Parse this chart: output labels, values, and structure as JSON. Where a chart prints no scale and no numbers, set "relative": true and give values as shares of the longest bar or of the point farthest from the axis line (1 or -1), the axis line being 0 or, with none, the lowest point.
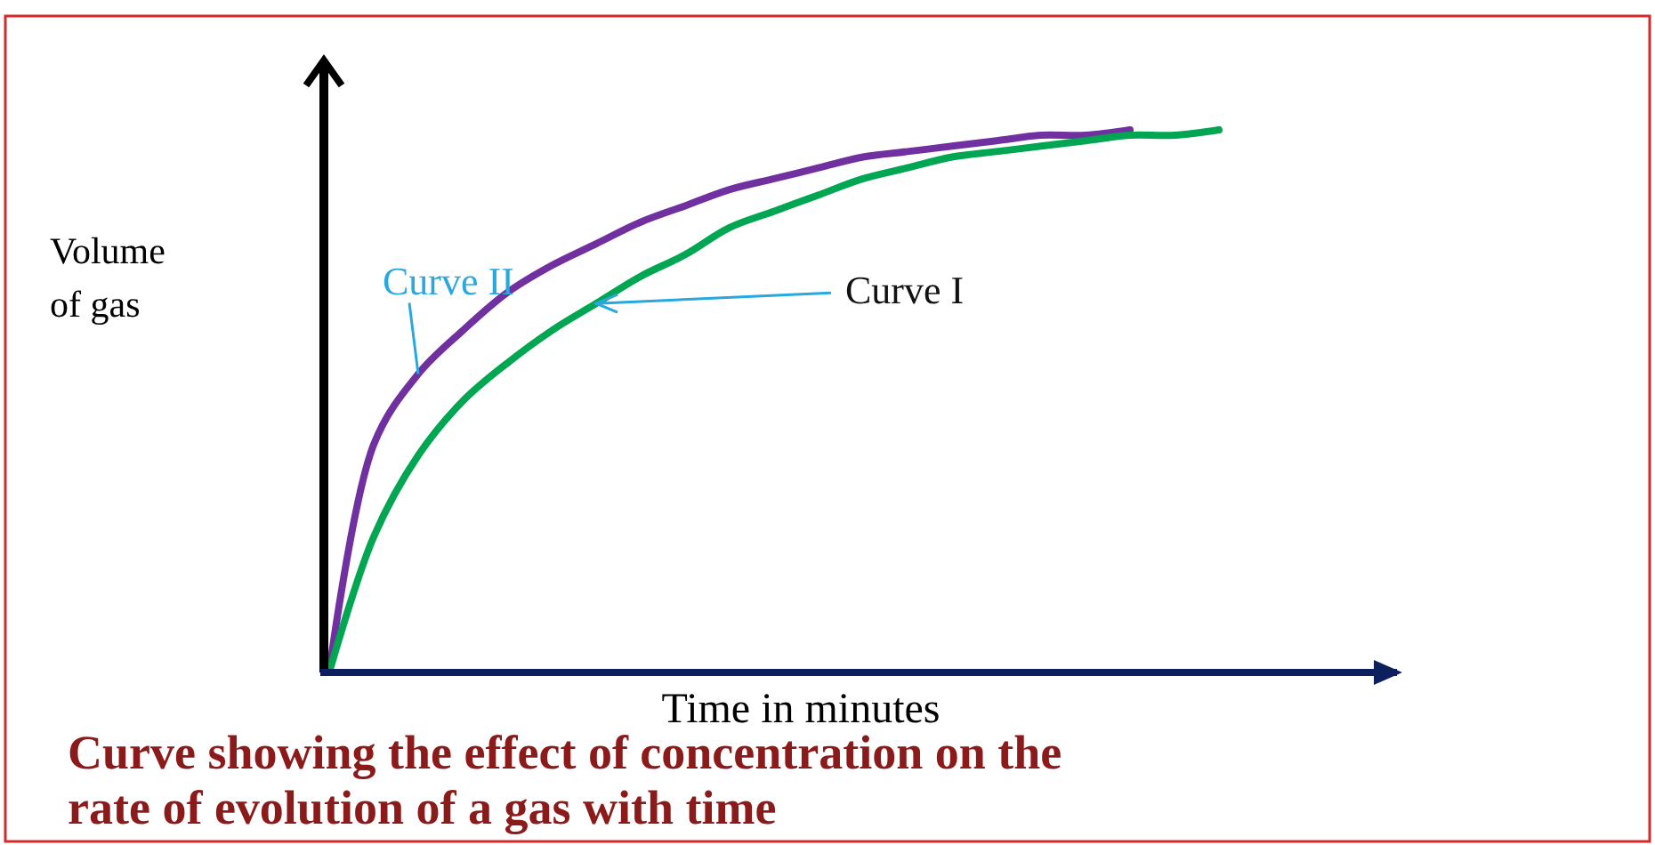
{
  "chart_data": {
    "type": "line",
    "relative": true,
    "title": "Curve showing the effect of concentration on the rate of evolution of a gas with time",
    "xlabel": "Time in minutes",
    "ylabel": "Volume of gas",
    "categories": [
      null,
      null,
      null,
      null,
      null,
      null,
      null,
      null,
      null,
      null,
      null,
      null,
      null,
      null,
      null,
      null,
      null,
      null,
      null,
      null,
      null
    ],
    "legend": false,
    "grid": false,
    "marker": "none",
    "line_style": "solid",
    "series": [
      {
        "name": "Curve II",
        "color": "#7030a0",
        "values": [
          0,
          0.42,
          0.55,
          0.63,
          0.7,
          0.75,
          0.79,
          0.83,
          0.86,
          0.89,
          0.91,
          0.93,
          0.95,
          0.96,
          0.97,
          0.98,
          0.99,
          0.99,
          1,
          null,
          null
        ]
      },
      {
        "name": "Curve I",
        "color": "#00a651",
        "values": [
          0,
          0.25,
          0.4,
          0.5,
          0.57,
          0.63,
          0.68,
          0.73,
          0.77,
          0.82,
          0.85,
          0.88,
          0.91,
          0.93,
          0.95,
          0.96,
          0.97,
          0.98,
          0.99,
          0.99,
          1
        ]
      }
    ]
  }
}
